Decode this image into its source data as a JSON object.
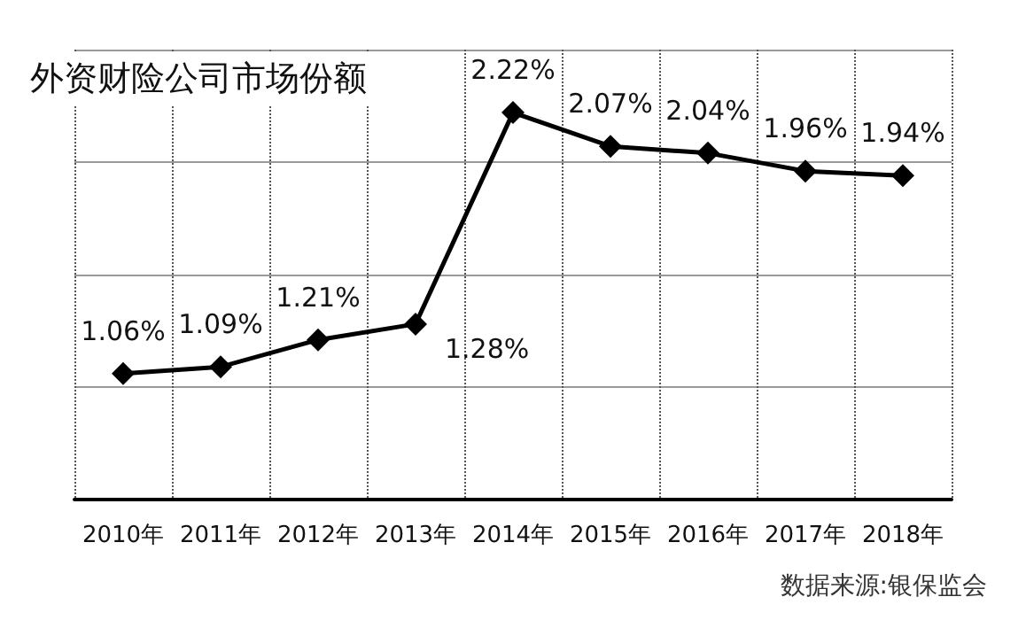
{
  "chart_data": {
    "type": "line",
    "title": "外资财险公司市场份额",
    "categories": [
      "2010年",
      "2011年",
      "2012年",
      "2013年",
      "2014年",
      "2015年",
      "2016年",
      "2017年",
      "2018年"
    ],
    "values": [
      1.06,
      1.09,
      1.21,
      1.28,
      2.22,
      2.07,
      2.04,
      1.96,
      1.94
    ],
    "value_labels": [
      "1.06%",
      "1.09%",
      "1.21%",
      "1.28%",
      "2.22%",
      "2.07%",
      "2.04%",
      "1.96%",
      "1.94%"
    ],
    "color": "#000000",
    "marker": "diamond",
    "line_style": "solid",
    "ylim": [
      0.5,
      2.5
    ],
    "yticks": [
      {
        "value": 0.5,
        "label": null
      },
      {
        "value": 1,
        "label": null
      },
      {
        "value": 1.5,
        "label": null
      },
      {
        "value": 2,
        "label": null
      },
      {
        "value": 2.5,
        "label": null
      }
    ],
    "tick_labels": "x",
    "grid": true,
    "annotations": [
      "数据来源:银保监会"
    ]
  }
}
